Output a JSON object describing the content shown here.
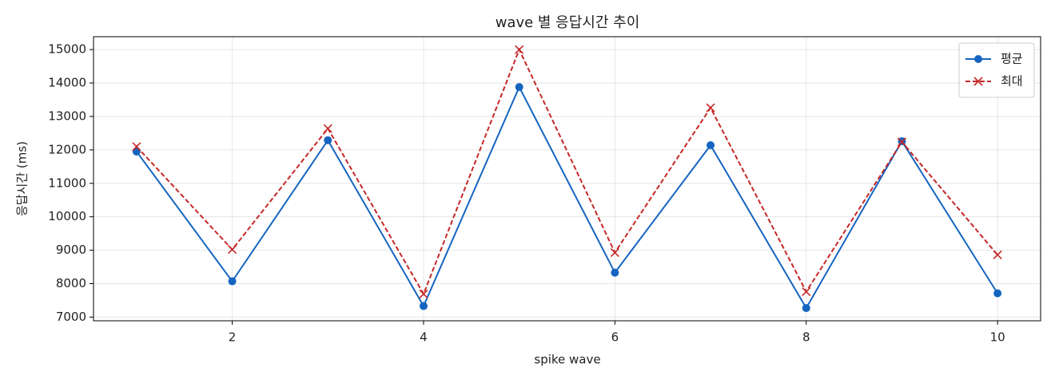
{
  "chart_data": {
    "type": "line",
    "title": "wave 별 응답시간 추이",
    "xlabel": "spike wave",
    "ylabel": "응답시간 (ms)",
    "x": [
      1,
      2,
      3,
      4,
      5,
      6,
      7,
      8,
      9,
      10
    ],
    "series": [
      {
        "name": "평균",
        "color": "#1565c0",
        "marker": "o",
        "linestyle": "solid",
        "values": [
          11950,
          8070,
          12290,
          7330,
          13880,
          8330,
          12140,
          7270,
          12260,
          7710
        ]
      },
      {
        "name": "최대",
        "color": "#c62828",
        "marker": "x",
        "linestyle": "dashed",
        "values": [
          12100,
          9020,
          12640,
          7690,
          15000,
          8930,
          13260,
          7760,
          12240,
          8860
        ]
      }
    ],
    "xlim": [
      0.55,
      10.45
    ],
    "xticks": [
      2,
      4,
      6,
      8,
      10
    ],
    "ylim": [
      6890,
      15385
    ],
    "yticks": [
      7000,
      8000,
      9000,
      10000,
      11000,
      12000,
      13000,
      14000,
      15000
    ],
    "grid": true,
    "legend": "upper right"
  }
}
